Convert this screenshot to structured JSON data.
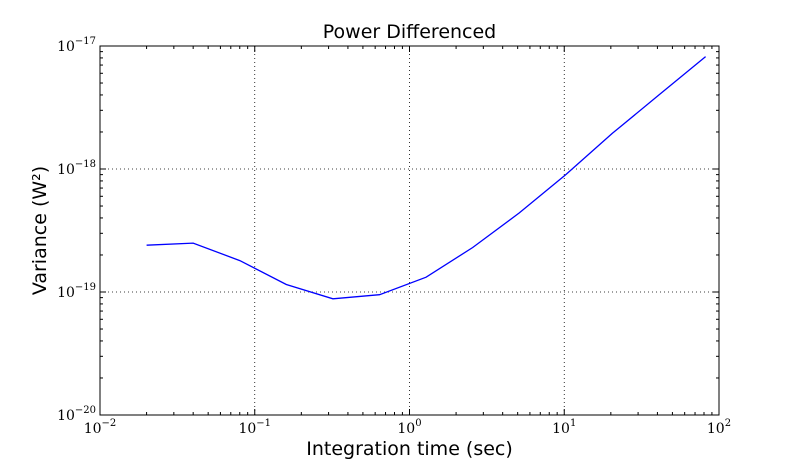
{
  "chart_data": {
    "type": "line",
    "title": "Power Differenced",
    "xlabel": "Integration time (sec)",
    "ylabel": "Variance (W²)",
    "x_scale": "log",
    "y_scale": "log",
    "xlim": [
      0.01,
      100
    ],
    "ylim": [
      1e-20,
      1e-17
    ],
    "x_ticks": [
      {
        "base": "10",
        "exp": "−2",
        "value": 0.01
      },
      {
        "base": "10",
        "exp": "−1",
        "value": 0.1
      },
      {
        "base": "10",
        "exp": "0",
        "value": 1
      },
      {
        "base": "10",
        "exp": "1",
        "value": 10
      },
      {
        "base": "10",
        "exp": "2",
        "value": 100
      }
    ],
    "y_ticks": [
      {
        "base": "10",
        "exp": "−20",
        "value": 1e-20
      },
      {
        "base": "10",
        "exp": "−19",
        "value": 1e-19
      },
      {
        "base": "10",
        "exp": "−18",
        "value": 1e-18
      },
      {
        "base": "10",
        "exp": "−17",
        "value": 1e-17
      }
    ],
    "grid": true,
    "series": [
      {
        "color": "#0000ff",
        "x": [
          0.02,
          0.04,
          0.08,
          0.16,
          0.32,
          0.64,
          1.28,
          2.56,
          5.12,
          10.24,
          20.48,
          40.96,
          81.92
        ],
        "y": [
          2.4e-19,
          2.5e-19,
          1.8e-19,
          1.15e-19,
          8.8e-20,
          9.5e-20,
          1.32e-19,
          2.3e-19,
          4.4e-19,
          9e-19,
          1.95e-18,
          4e-18,
          8.2e-18
        ]
      }
    ]
  }
}
